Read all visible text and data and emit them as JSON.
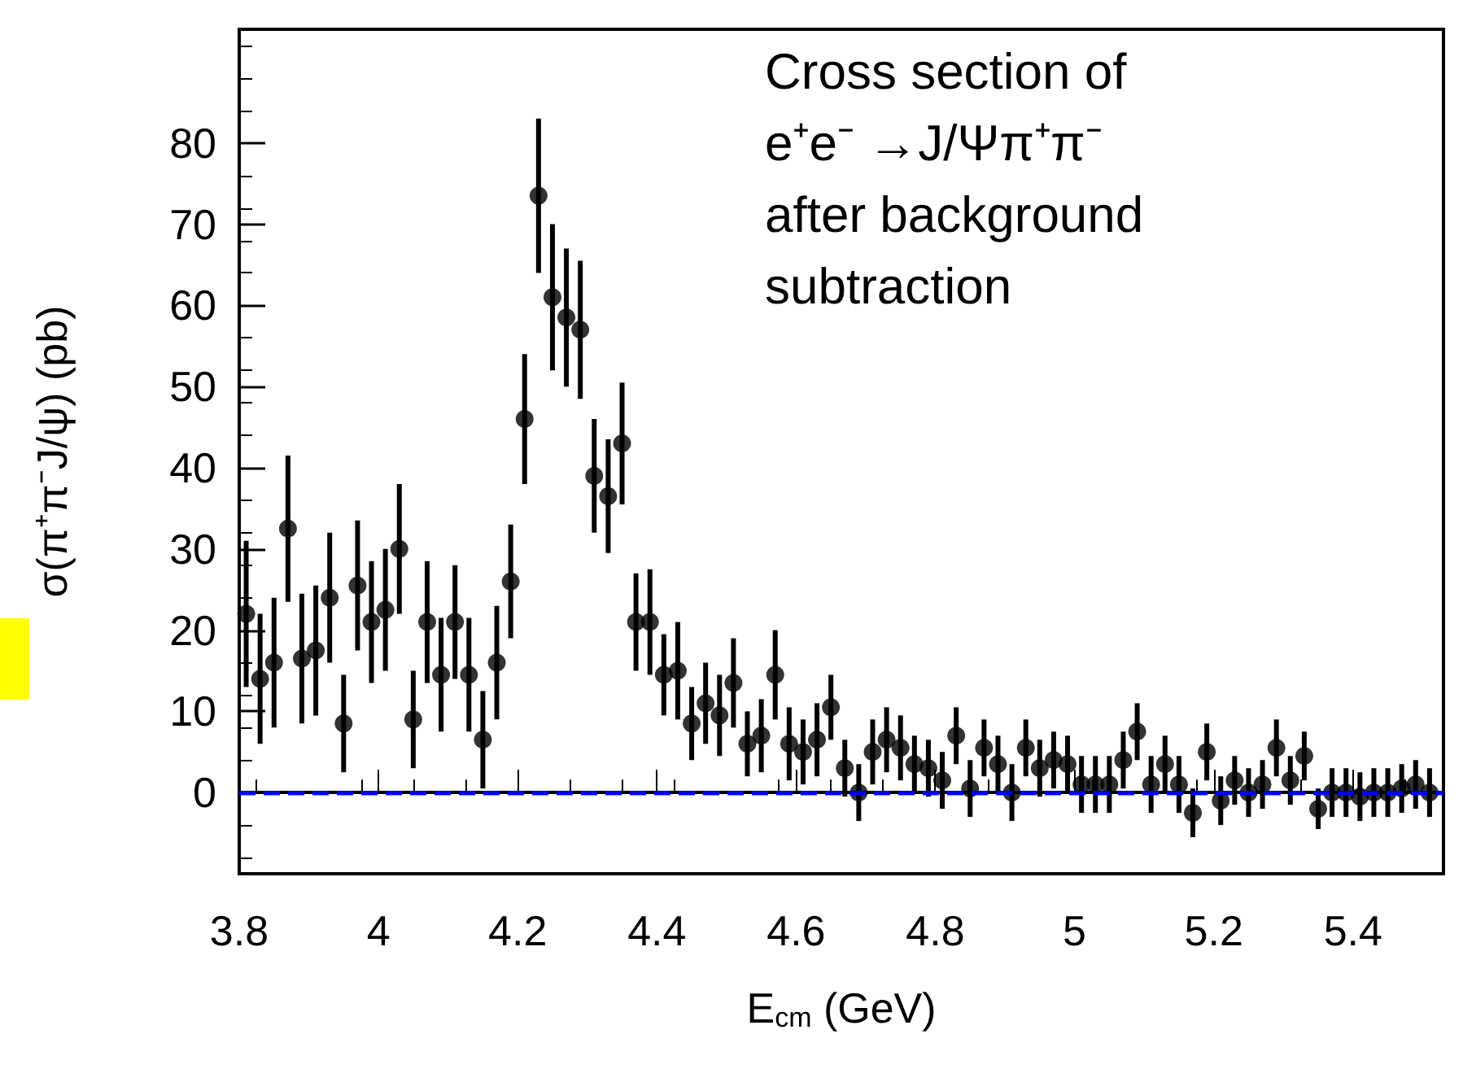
{
  "chart_data": {
    "type": "scatter",
    "xlabel": "E$_{cm}$ (GeV)",
    "ylabel": "σ(π⁺π⁻J/ψ) (pb)",
    "annotations": [
      "Cross section of\ne⁺e⁻ →J/Ψπ⁺π⁻\nafter background\nsubtraction"
    ],
    "x": [
      3.81,
      3.83,
      3.85,
      3.87,
      3.89,
      3.91,
      3.93,
      3.95,
      3.97,
      3.99,
      4.01,
      4.03,
      4.05,
      4.07,
      4.09,
      4.11,
      4.13,
      4.15,
      4.17,
      4.19,
      4.21,
      4.23,
      4.25,
      4.27,
      4.29,
      4.31,
      4.33,
      4.35,
      4.37,
      4.39,
      4.41,
      4.43,
      4.45,
      4.47,
      4.49,
      4.51,
      4.53,
      4.55,
      4.57,
      4.59,
      4.61,
      4.63,
      4.65,
      4.67,
      4.69,
      4.71,
      4.73,
      4.75,
      4.77,
      4.79,
      4.81,
      4.83,
      4.85,
      4.87,
      4.89,
      4.91,
      4.93,
      4.95,
      4.97,
      4.99,
      5.01,
      5.03,
      5.05,
      5.07,
      5.09,
      5.11,
      5.13,
      5.15,
      5.17,
      5.19,
      5.21,
      5.23,
      5.25,
      5.27,
      5.29,
      5.31,
      5.33,
      5.35,
      5.37,
      5.39,
      5.41,
      5.43,
      5.45,
      5.47,
      5.49,
      5.51
    ],
    "series": [
      {
        "color": "#000000",
        "values": [
          22,
          14,
          16,
          32.5,
          16.5,
          17.5,
          24,
          8.5,
          25.5,
          21,
          22.5,
          30,
          9,
          21,
          14.5,
          21,
          14.5,
          6.5,
          16,
          26,
          46,
          73.5,
          61,
          58.5,
          57,
          39,
          36.5,
          43,
          21,
          21,
          14.5,
          15,
          8.5,
          11,
          9.5,
          13.5,
          6,
          7,
          14.5,
          6,
          5,
          6.5,
          10.5,
          3,
          0,
          5,
          6.5,
          5.5,
          3.5,
          3,
          1.5,
          7,
          0.5,
          5.5,
          3.5,
          0,
          5.5,
          3,
          4,
          3.5,
          1,
          1,
          1,
          4,
          7.5,
          1,
          3.5,
          1,
          -2.5,
          5,
          -1,
          1.5,
          0,
          1,
          5.5,
          1.5,
          4.5,
          -2,
          0,
          0,
          -0.5,
          0,
          0,
          0.5,
          1,
          0
        ],
        "errors": [
          9,
          8,
          8,
          9,
          8,
          8,
          8,
          6,
          8,
          7.5,
          7.5,
          8,
          6,
          7.5,
          7,
          7,
          7,
          6,
          7,
          7,
          8,
          9.5,
          9,
          8.5,
          8.5,
          7,
          7,
          7.5,
          6,
          6.5,
          5,
          6,
          4.5,
          5,
          5,
          5.5,
          4,
          4.5,
          5.5,
          4.5,
          4,
          4.5,
          4,
          3.5,
          3.5,
          4,
          4,
          4,
          3.5,
          3.5,
          3.5,
          3.5,
          3.5,
          3.5,
          3.5,
          3.5,
          3.5,
          3.5,
          3.5,
          3.5,
          3.5,
          3.5,
          3.5,
          3.5,
          3.5,
          3.5,
          3.5,
          3.5,
          3,
          3.5,
          3,
          3,
          3,
          3,
          3.5,
          3,
          3,
          2.5,
          3,
          3,
          3,
          3,
          3,
          3,
          3,
          3
        ]
      }
    ],
    "xlim": [
      3.8,
      5.53
    ],
    "xticks": [
      3.8,
      4,
      4.2,
      4.4,
      4.6,
      4.8,
      5,
      5.2,
      5.4
    ],
    "ylim": [
      -10,
      94
    ],
    "yticks": [
      0,
      10,
      20,
      30,
      40,
      50,
      60,
      70,
      80
    ],
    "ref_lines": [
      {
        "axis": "y",
        "value": 0,
        "color": "#0000ff",
        "line_style": "dashed"
      }
    ],
    "grid": false,
    "marker": "circle"
  }
}
